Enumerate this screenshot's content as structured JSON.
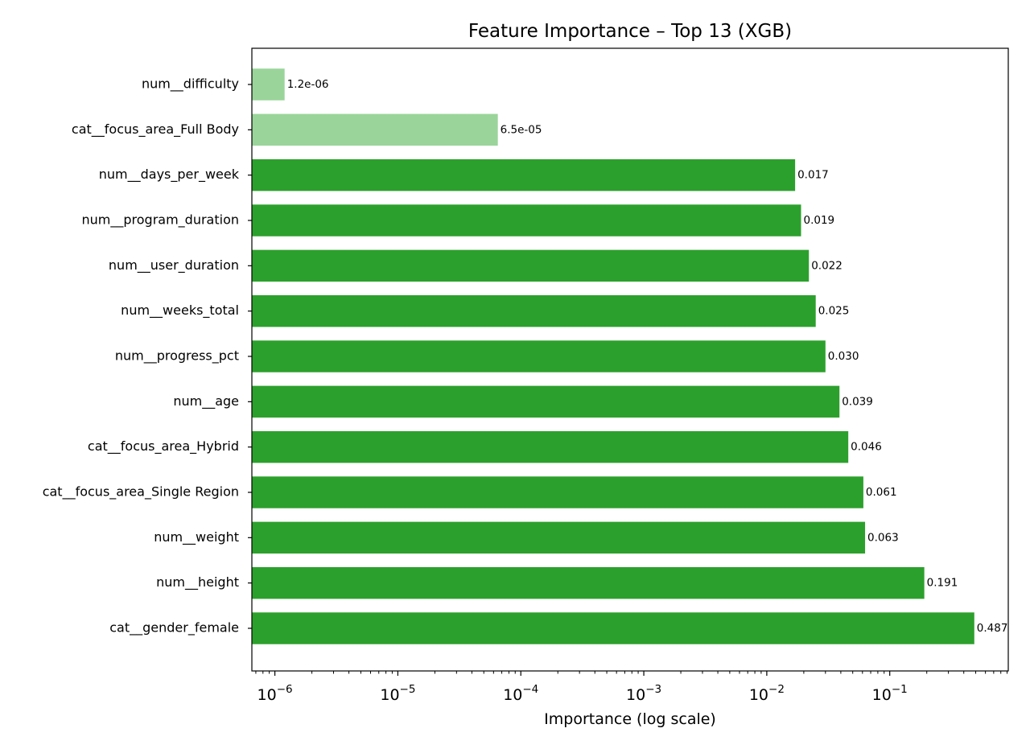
{
  "chart_data": {
    "type": "bar",
    "orientation": "horizontal",
    "title": "Feature Importance – Top 13  (XGB)",
    "xlabel": "Importance (log scale)",
    "ylabel": "",
    "xscale": "log",
    "xlim": [
      6.5e-07,
      0.92
    ],
    "grid": false,
    "legend": "none",
    "categories": [
      "num__difficulty",
      "cat__focus_area_Full Body",
      "num__days_per_week",
      "num__program_duration",
      "num__user_duration",
      "num__weeks_total",
      "num__progress_pct",
      "num__age",
      "cat__focus_area_Hybrid",
      "cat__focus_area_Single Region",
      "num__weight",
      "num__height",
      "cat__gender_female"
    ],
    "values": [
      1.2e-06,
      6.5e-05,
      0.017,
      0.019,
      0.022,
      0.025,
      0.03,
      0.039,
      0.046,
      0.061,
      0.063,
      0.191,
      0.487
    ],
    "value_labels": [
      "1.2e-06",
      "6.5e-05",
      "0.017",
      "0.019",
      "0.022",
      "0.025",
      "0.030",
      "0.039",
      "0.046",
      "0.061",
      "0.063",
      "0.191",
      "0.487"
    ],
    "bar_emphasis": [
      "minor",
      "minor",
      "major",
      "major",
      "major",
      "major",
      "major",
      "major",
      "major",
      "major",
      "major",
      "major",
      "major"
    ],
    "x_ticks": [
      {
        "value": 1e-06,
        "base": "10",
        "exp": "−6"
      },
      {
        "value": 1e-05,
        "base": "10",
        "exp": "−5"
      },
      {
        "value": 0.0001,
        "base": "10",
        "exp": "−4"
      },
      {
        "value": 0.001,
        "base": "10",
        "exp": "−3"
      },
      {
        "value": 0.01,
        "base": "10",
        "exp": "−2"
      },
      {
        "value": 0.1,
        "base": "10",
        "exp": "−1"
      }
    ],
    "colors": {
      "major": "#2ca02c",
      "minor": "#9ad49a",
      "axis": "#000000"
    }
  }
}
